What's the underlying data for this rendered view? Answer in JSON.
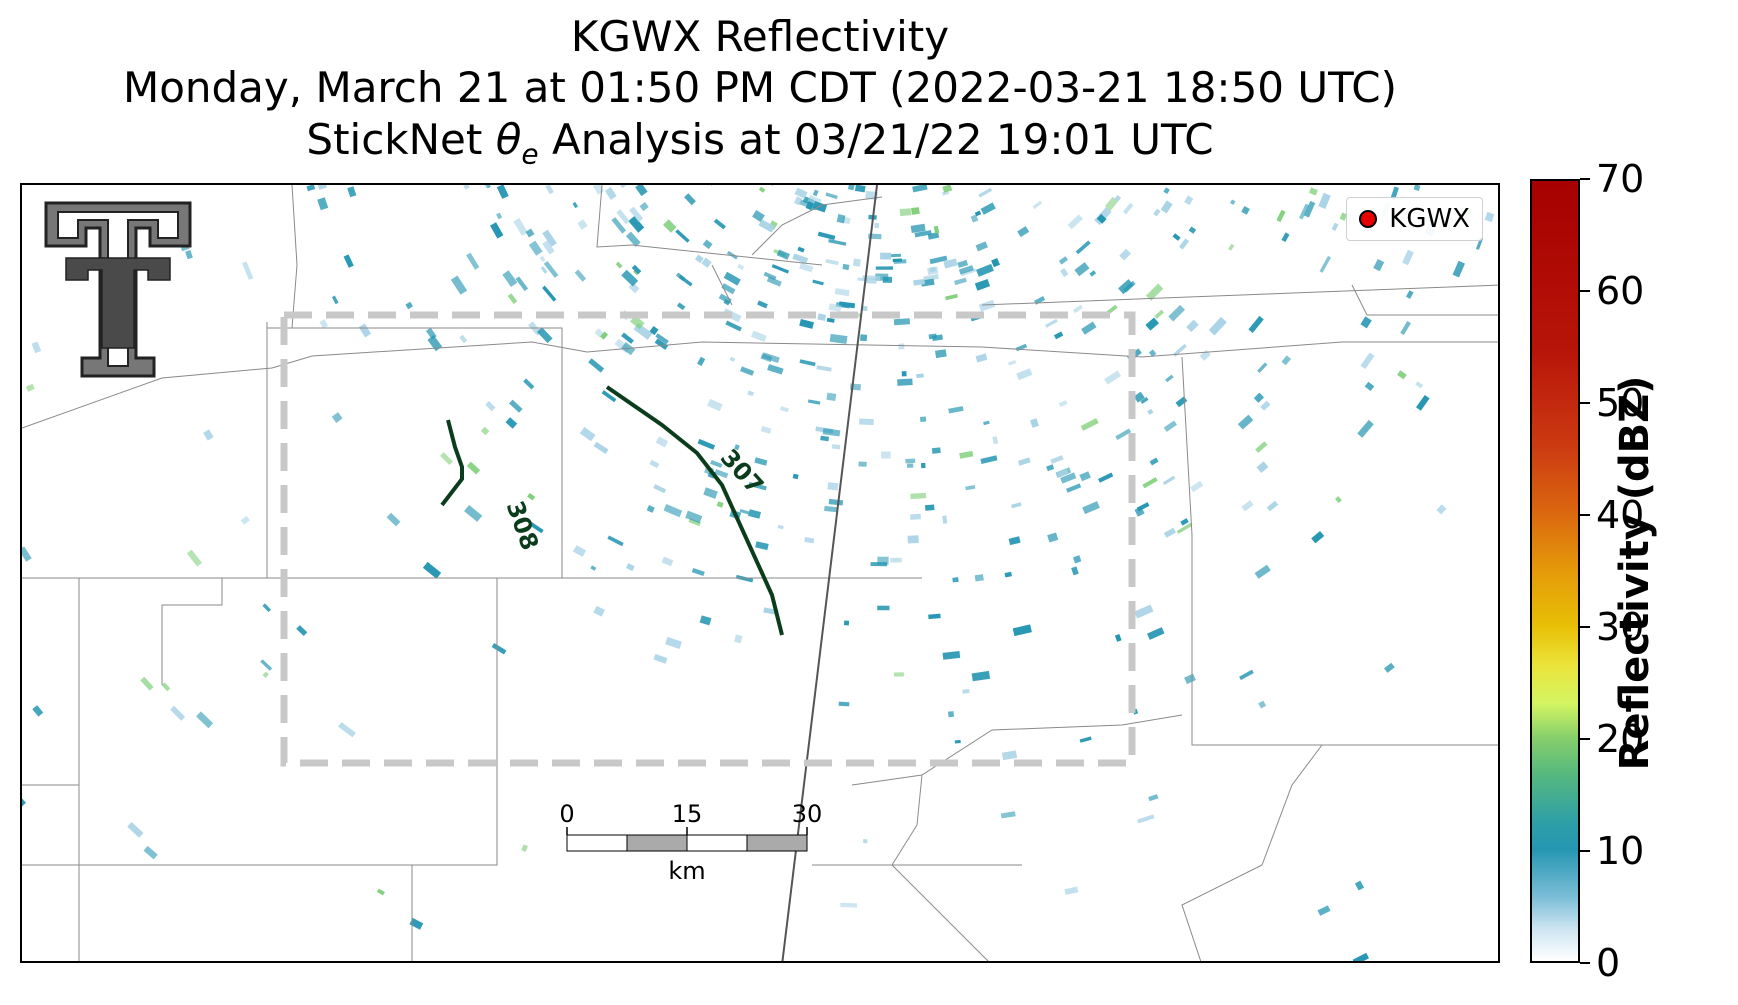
{
  "title": {
    "line1": "KGWX Reflectivity",
    "line2": "Monday, March 21 at 01:50 PM CDT (2022-03-21 18:50 UTC)",
    "line3_prefix": "StickNet ",
    "line3_theta": "θ",
    "line3_sub": "e",
    "line3_suffix": " Analysis at 03/21/22 19:01 UTC"
  },
  "legend": {
    "label": "KGWX",
    "marker_color": "#e60000"
  },
  "colorbar": {
    "label": "Reflectivity (dBZ)",
    "ticks": [
      "0",
      "10",
      "20",
      "30",
      "40",
      "50",
      "60",
      "70"
    ],
    "range": [
      0,
      70
    ]
  },
  "contours": [
    {
      "label": "308",
      "color": "#0b3d1c"
    },
    {
      "label": "307",
      "color": "#0b3d1c"
    }
  ],
  "scale_bar": {
    "ticks": [
      "0",
      "15",
      "30"
    ],
    "unit": "km"
  },
  "colors": {
    "echo_primary": "#2596b2",
    "echo_light": "#a9d3e6",
    "echo_green": "#7fcf7a",
    "domain_box": "#c8c8c8",
    "boundary": "#7a7a7a"
  },
  "logo": {
    "name": "texas-tech-double-t-logo"
  }
}
